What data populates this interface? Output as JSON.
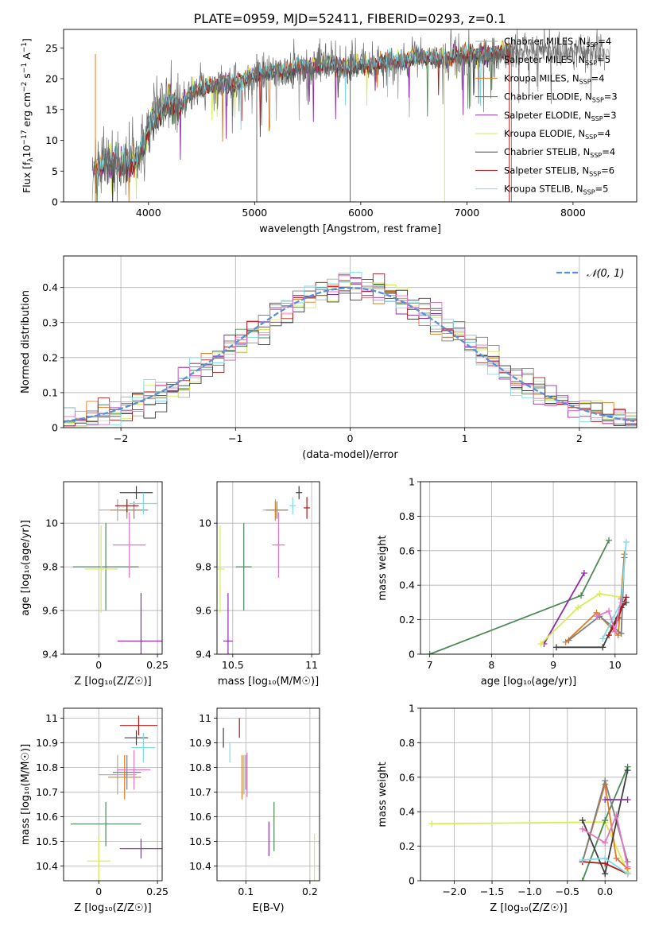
{
  "figure_title": "PLATE=0959, MJD=52411, FIBERID=0293, z=0.1",
  "chart_data": [
    {
      "id": "spectrum",
      "type": "line",
      "xlabel": "wavelength [Angstrom, rest frame]",
      "ylabel": "Flux [f$_\\lambda$10$^{-17}$ erg cm$^{-2}$ s$^{-1}$ A$^{-1}$]",
      "ylabel_parts": {
        "a": "Flux [f",
        "b": "λ",
        "c": "10",
        "d": "−17",
        "e": " erg cm",
        "f": "−2",
        "g": " s",
        "h": "−1",
        "i": " A",
        "j": "−1",
        "k": "]"
      },
      "xlim": [
        3200,
        8600
      ],
      "ylim": [
        0,
        28
      ],
      "xticks": [
        4000,
        5000,
        6000,
        7000,
        8000
      ],
      "yticks": [
        0,
        5,
        10,
        15,
        20,
        25
      ],
      "grid": false,
      "legend_position": "right",
      "series": [
        {
          "name": "Chabrier MILES, N",
          "sub": "SSP",
          "suffix": "=4",
          "color": "#aaaaaa"
        },
        {
          "name": "Salpeter MILES, N",
          "sub": "SSP",
          "suffix": "=5",
          "color": "#7f7f7f"
        },
        {
          "name": "Kroupa MILES, N",
          "sub": "SSP",
          "suffix": "=4",
          "color": "#e07b20"
        },
        {
          "name": "Chabrier ELODIE, N",
          "sub": "SSP",
          "suffix": "=3",
          "color": "#4e8a55"
        },
        {
          "name": "Salpeter ELODIE, N",
          "sub": "SSP",
          "suffix": "=3",
          "color": "#8e2da8"
        },
        {
          "name": "Kroupa ELODIE, N",
          "sub": "SSP",
          "suffix": "=4",
          "color": "#d7ec50"
        },
        {
          "name": "Chabrier STELIB, N",
          "sub": "SSP",
          "suffix": "=4",
          "color": "#404040"
        },
        {
          "name": "Salpeter STELIB, N",
          "sub": "SSP",
          "suffix": "=6",
          "color": "#b01818"
        },
        {
          "name": "Kroupa STELIB, N",
          "sub": "SSP",
          "suffix": "=5",
          "color": "#7fdbe8"
        }
      ],
      "data_curve": {
        "color": "#6d6d6d",
        "x": [
          3500,
          3600,
          3700,
          3800,
          3900,
          4000,
          4100,
          4200,
          4300,
          4400,
          4500,
          4600,
          4700,
          4800,
          4900,
          5000,
          5100,
          5200,
          5300,
          5400,
          5500,
          5600,
          5700,
          5800,
          5900,
          6000,
          6100,
          6200,
          6300,
          6400,
          6500,
          6600,
          6700,
          6800,
          6900,
          7000,
          7100,
          7200,
          7300,
          7400,
          7500,
          7600,
          7700,
          7800,
          7900,
          8000,
          8100,
          8200,
          8300
        ],
        "y": [
          5,
          7,
          6,
          6.5,
          7,
          12,
          15,
          16,
          15.5,
          18,
          18.5,
          19,
          19.5,
          19,
          20,
          21,
          21,
          21.5,
          21,
          22,
          22,
          22,
          22.5,
          22,
          22,
          22.5,
          22,
          22.5,
          23,
          23,
          23.5,
          23.5,
          23.5,
          23.5,
          24,
          24,
          24,
          24,
          24.5,
          24.5,
          24.5,
          24.5,
          25,
          24.5,
          24.5,
          24.5,
          24.5,
          24.5,
          24.5
        ]
      }
    },
    {
      "id": "residuals",
      "type": "area",
      "xlabel": "(data-model)/error",
      "ylabel": "Normed distribution",
      "xlim": [
        -2.5,
        2.5
      ],
      "ylim": [
        0,
        0.49
      ],
      "xticks": [
        -2,
        -1,
        0,
        1,
        2
      ],
      "yticks": [
        0.0,
        0.1,
        0.2,
        0.3,
        0.4
      ],
      "grid": true,
      "legend": {
        "label": "𝒩(0, 1)",
        "color": "#5b8fd6",
        "position": "top-right"
      }
    },
    {
      "id": "age_vs_Z",
      "type": "scatter",
      "xlabel": "Z [log₁₀(Z/Z☉)]",
      "ylabel": "age  [log₁₀(age/yr)]",
      "xlim": [
        -0.15,
        0.27
      ],
      "ylim": [
        9.4,
        10.19
      ],
      "xticks": [
        0.0,
        0.25
      ],
      "yticks": [
        9.4,
        9.6,
        9.8,
        10.0
      ],
      "grid": true,
      "points": [
        {
          "x": 0.08,
          "y": 10.06,
          "xerr": 0.08,
          "yerr": 0.05,
          "color": "#aaaaaa"
        },
        {
          "x": 0.15,
          "y": 10.06,
          "xerr": 0.06,
          "yerr": 0.04,
          "color": "#7f7f7f"
        },
        {
          "x": 0.12,
          "y": 10.06,
          "xerr": 0.07,
          "yerr": 0.04,
          "color": "#e07b20"
        },
        {
          "x": 0.03,
          "y": 9.8,
          "xerr": 0.14,
          "yerr": 0.2,
          "color": "#4e8a55"
        },
        {
          "x": 0.18,
          "y": 9.46,
          "xerr": 0.1,
          "yerr": 0.22,
          "color": "#8e2da8"
        },
        {
          "x": 0.01,
          "y": 9.79,
          "xerr": 0.07,
          "yerr": 0.2,
          "color": "#d7ec50"
        },
        {
          "x": 0.16,
          "y": 10.14,
          "xerr": 0.07,
          "yerr": 0.03,
          "color": "#404040"
        },
        {
          "x": 0.12,
          "y": 10.08,
          "xerr": 0.05,
          "yerr": 0.03,
          "color": "#b01818"
        },
        {
          "x": 0.19,
          "y": 10.09,
          "xerr": 0.06,
          "yerr": 0.05,
          "color": "#7fdbe8"
        },
        {
          "x": 0.13,
          "y": 9.9,
          "xerr": 0.07,
          "yerr": 0.15,
          "color": "#e377c2"
        }
      ]
    },
    {
      "id": "age_vs_mass",
      "type": "scatter",
      "xlabel": "mass [log₁₀(M/M☉)]",
      "ylabel": "",
      "xlim": [
        10.4,
        11.05
      ],
      "ylim": [
        9.4,
        10.19
      ],
      "xticks": [
        10.5,
        11.0
      ],
      "yticks": [
        9.4,
        9.6,
        9.8,
        10.0
      ],
      "grid": true,
      "points": [
        {
          "x": 10.77,
          "y": 10.06,
          "xerr": 0.08,
          "yerr": 0.05,
          "color": "#aaaaaa"
        },
        {
          "x": 10.78,
          "y": 10.06,
          "xerr": 0.07,
          "yerr": 0.04,
          "color": "#7f7f7f"
        },
        {
          "x": 10.77,
          "y": 10.06,
          "xerr": 0.06,
          "yerr": 0.04,
          "color": "#e07b20"
        },
        {
          "x": 10.57,
          "y": 9.8,
          "xerr": 0.05,
          "yerr": 0.2,
          "color": "#4e8a55"
        },
        {
          "x": 10.47,
          "y": 9.46,
          "xerr": 0.03,
          "yerr": 0.22,
          "color": "#8e2da8"
        },
        {
          "x": 10.42,
          "y": 9.79,
          "xerr": 0.03,
          "yerr": 0.2,
          "color": "#d7ec50"
        },
        {
          "x": 10.92,
          "y": 10.14,
          "xerr": 0.02,
          "yerr": 0.03,
          "color": "#404040"
        },
        {
          "x": 10.97,
          "y": 10.07,
          "xerr": 0.02,
          "yerr": 0.05,
          "color": "#b01818"
        },
        {
          "x": 10.88,
          "y": 10.08,
          "xerr": 0.02,
          "yerr": 0.04,
          "color": "#7fdbe8"
        },
        {
          "x": 10.79,
          "y": 9.9,
          "xerr": 0.04,
          "yerr": 0.15,
          "color": "#e377c2"
        }
      ]
    },
    {
      "id": "mass_weight_vs_age",
      "type": "line",
      "xlabel": "age  [log₁₀(age/yr)]",
      "ylabel": "mass weight",
      "xlim": [
        6.85,
        10.35
      ],
      "ylim": [
        0,
        1.0
      ],
      "xticks": [
        7,
        8,
        9,
        10
      ],
      "yticks": [
        0.0,
        0.2,
        0.4,
        0.6,
        0.8,
        1.0
      ],
      "grid": true,
      "series": [
        {
          "color": "#4e8a55",
          "x": [
            7.0,
            9.45,
            9.9
          ],
          "y": [
            0.0,
            0.34,
            0.66
          ]
        },
        {
          "color": "#8e2da8",
          "x": [
            8.85,
            9.5
          ],
          "y": [
            0.06,
            0.47
          ]
        },
        {
          "color": "#d7ec50",
          "x": [
            8.8,
            9.4,
            9.75,
            10.1
          ],
          "y": [
            0.06,
            0.27,
            0.35,
            0.33
          ]
        },
        {
          "color": "#e07b20",
          "x": [
            9.2,
            9.7,
            10.05,
            10.15
          ],
          "y": [
            0.07,
            0.24,
            0.11,
            0.58
          ]
        },
        {
          "color": "#7f7f7f",
          "x": [
            9.25,
            9.75,
            10.1,
            10.15
          ],
          "y": [
            0.08,
            0.22,
            0.12,
            0.56
          ]
        },
        {
          "color": "#404040",
          "x": [
            9.05,
            9.8,
            10.1,
            10.18
          ],
          "y": [
            0.04,
            0.04,
            0.27,
            0.3
          ]
        },
        {
          "color": "#b01818",
          "x": [
            9.9,
            10.05,
            10.13,
            10.18
          ],
          "y": [
            0.11,
            0.21,
            0.29,
            0.33
          ]
        },
        {
          "color": "#7fdbe8",
          "x": [
            9.8,
            9.95,
            10.1,
            10.18
          ],
          "y": [
            0.09,
            0.2,
            0.3,
            0.65
          ]
        },
        {
          "color": "#e377c2",
          "x": [
            9.7,
            9.9,
            10.0,
            10.1
          ],
          "y": [
            0.22,
            0.25,
            0.13,
            0.32
          ]
        }
      ]
    },
    {
      "id": "mass_vs_Z",
      "type": "scatter",
      "xlabel": "Z [log₁₀(Z/Z☉)]",
      "ylabel": "mass [log₁₀(M/M☉)]",
      "xlim": [
        -0.15,
        0.27
      ],
      "ylim": [
        10.34,
        11.04
      ],
      "xticks": [
        0.0,
        0.25
      ],
      "yticks": [
        10.4,
        10.5,
        10.6,
        10.7,
        10.8,
        10.9,
        11.0
      ],
      "grid": true,
      "points": [
        {
          "x": 0.08,
          "y": 10.77,
          "xerr": 0.08,
          "yerr": 0.08,
          "color": "#aaaaaa"
        },
        {
          "x": 0.12,
          "y": 10.78,
          "xerr": 0.06,
          "yerr": 0.07,
          "color": "#7f7f7f"
        },
        {
          "x": 0.11,
          "y": 10.76,
          "xerr": 0.07,
          "yerr": 0.09,
          "color": "#e07b20"
        },
        {
          "x": 0.03,
          "y": 10.57,
          "xerr": 0.15,
          "yerr": 0.09,
          "color": "#4e8a55"
        },
        {
          "x": 0.18,
          "y": 10.47,
          "xerr": 0.09,
          "yerr": 0.04,
          "color": "#8e2da8"
        },
        {
          "x": 0.0,
          "y": 10.42,
          "xerr": 0.05,
          "yerr": 0.1,
          "color": "#d7ec50"
        },
        {
          "x": 0.16,
          "y": 10.92,
          "xerr": 0.05,
          "yerr": 0.03,
          "color": "#404040"
        },
        {
          "x": 0.17,
          "y": 10.97,
          "xerr": 0.08,
          "yerr": 0.04,
          "color": "#b01818"
        },
        {
          "x": 0.19,
          "y": 10.88,
          "xerr": 0.05,
          "yerr": 0.06,
          "color": "#7fdbe8"
        },
        {
          "x": 0.15,
          "y": 10.79,
          "xerr": 0.07,
          "yerr": 0.08,
          "color": "#e377c2"
        }
      ]
    },
    {
      "id": "mass_vs_ebv",
      "type": "scatter",
      "xlabel": "E(B-V)",
      "ylabel": "",
      "xlim": [
        0.055,
        0.215
      ],
      "ylim": [
        10.34,
        11.04
      ],
      "xticks": [
        0.1,
        0.2
      ],
      "yticks": [
        10.4,
        10.5,
        10.6,
        10.7,
        10.8,
        10.9,
        11.0
      ],
      "grid": true,
      "points": [
        {
          "x": 0.097,
          "y": 10.77,
          "xerr": 0.0,
          "yerr": 0.08,
          "color": "#aaaaaa"
        },
        {
          "x": 0.1,
          "y": 10.78,
          "xerr": 0.0,
          "yerr": 0.07,
          "color": "#7f7f7f"
        },
        {
          "x": 0.094,
          "y": 10.76,
          "xerr": 0.0,
          "yerr": 0.09,
          "color": "#e07b20"
        },
        {
          "x": 0.144,
          "y": 10.56,
          "xerr": 0.0,
          "yerr": 0.1,
          "color": "#4e8a55"
        },
        {
          "x": 0.136,
          "y": 10.51,
          "xerr": 0.0,
          "yerr": 0.07,
          "color": "#8e2da8"
        },
        {
          "x": 0.207,
          "y": 10.4,
          "xerr": 0.0,
          "yerr": 0.13,
          "color": "#d7ec50"
        },
        {
          "x": 0.065,
          "y": 10.92,
          "xerr": 0.0,
          "yerr": 0.04,
          "color": "#404040"
        },
        {
          "x": 0.09,
          "y": 10.96,
          "xerr": 0.0,
          "yerr": 0.04,
          "color": "#b01818"
        },
        {
          "x": 0.075,
          "y": 10.86,
          "xerr": 0.0,
          "yerr": 0.04,
          "color": "#7fdbe8"
        },
        {
          "x": 0.102,
          "y": 10.77,
          "xerr": 0.0,
          "yerr": 0.09,
          "color": "#e377c2"
        }
      ]
    },
    {
      "id": "mass_weight_vs_Z",
      "type": "line",
      "xlabel": "Z [log₁₀(Z/Z☉)]",
      "ylabel": "mass weight",
      "xlim": [
        -2.45,
        0.42
      ],
      "ylim": [
        0,
        1.0
      ],
      "xticks": [
        -2.0,
        -1.5,
        -1.0,
        -0.5,
        0.0
      ],
      "xticklabels": [
        "−2.0",
        "−1.5",
        "−1.0",
        "−0.5",
        "0.0"
      ],
      "yticks": [
        0.0,
        0.2,
        0.4,
        0.6,
        0.8,
        1.0
      ],
      "grid": true,
      "series": [
        {
          "color": "#d7ec50",
          "x": [
            -2.3,
            0.0,
            0.3
          ],
          "y": [
            0.33,
            0.34,
            0.05
          ]
        },
        {
          "color": "#4e8a55",
          "x": [
            -0.3,
            0.0,
            0.3
          ],
          "y": [
            0.0,
            0.35,
            0.66
          ]
        },
        {
          "color": "#e07b20",
          "x": [
            -0.3,
            0.0,
            0.15,
            0.3
          ],
          "y": [
            0.11,
            0.56,
            0.13,
            0.07
          ]
        },
        {
          "color": "#7f7f7f",
          "x": [
            -0.3,
            0.0,
            0.3
          ],
          "y": [
            0.11,
            0.58,
            0.11
          ]
        },
        {
          "color": "#404040",
          "x": [
            -0.3,
            0.0,
            0.3
          ],
          "y": [
            0.35,
            0.04,
            0.64
          ]
        },
        {
          "color": "#b01818",
          "x": [
            -0.3,
            0.0,
            0.3
          ],
          "y": [
            0.11,
            0.1,
            0.04
          ]
        },
        {
          "color": "#7fdbe8",
          "x": [
            -0.3,
            0.0,
            0.3
          ],
          "y": [
            0.12,
            0.13,
            0.04
          ]
        },
        {
          "color": "#e377c2",
          "x": [
            -0.3,
            0.0,
            0.15,
            0.3
          ],
          "y": [
            0.3,
            0.22,
            0.38,
            0.08
          ]
        },
        {
          "color": "#8e2da8",
          "x": [
            0.0,
            0.3
          ],
          "y": [
            0.47,
            0.47
          ]
        }
      ]
    }
  ]
}
